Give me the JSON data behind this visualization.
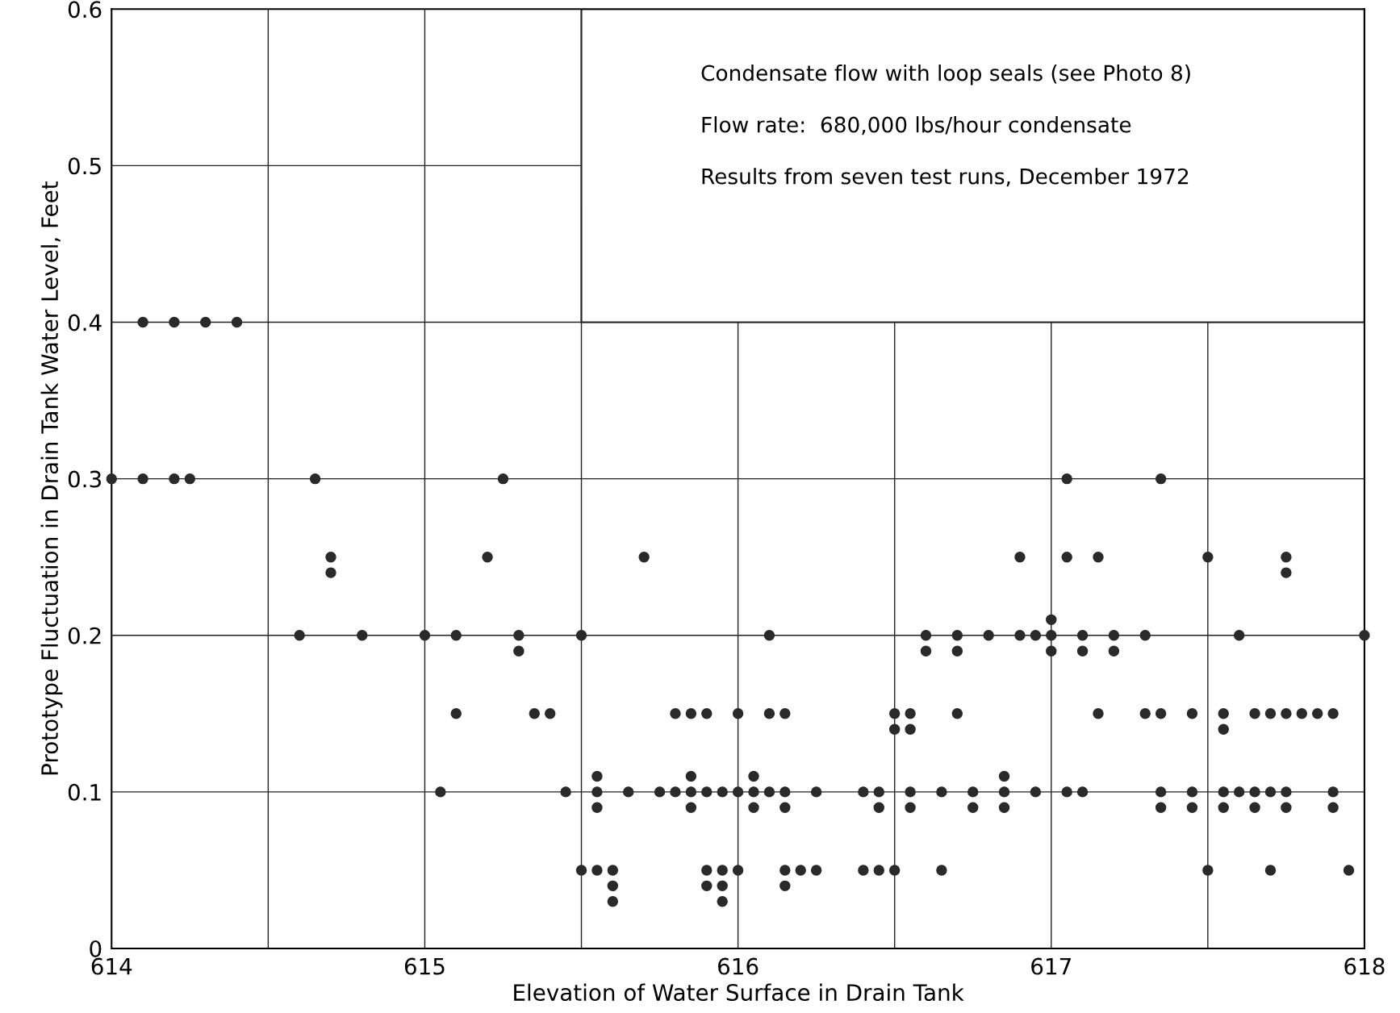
{
  "chart_data": {
    "type": "scatter",
    "xlabel": "Elevation of Water Surface in Drain Tank",
    "ylabel": "Prototype Fluctuation in Drain Tank Water Level, Feet",
    "annotations": [
      "Condensate flow with loop seals (see Photo 8)",
      "Flow rate:  680,000 lbs/hour condensate",
      "Results from seven test runs, December 1972"
    ],
    "x": [
      614.1,
      614.2,
      614.3,
      614.4,
      614.0,
      614.1,
      614.2,
      614.25,
      614.65,
      615.25,
      617.05,
      617.35,
      614.7,
      615.2,
      615.7,
      616.9,
      617.05,
      617.15,
      617.5,
      617.75,
      614.7,
      617.75,
      617.0,
      614.6,
      614.8,
      615.0,
      615.1,
      615.3,
      615.5,
      616.1,
      616.6,
      616.7,
      616.8,
      616.9,
      616.95,
      617.0,
      617.1,
      617.2,
      617.3,
      617.6,
      618.0,
      615.3,
      616.6,
      616.7,
      617.0,
      617.1,
      617.2,
      615.1,
      615.35,
      615.4,
      615.8,
      615.85,
      615.9,
      616.0,
      616.1,
      616.15,
      616.5,
      616.55,
      616.7,
      617.15,
      617.3,
      617.35,
      617.45,
      617.55,
      617.65,
      617.7,
      617.75,
      617.8,
      617.85,
      617.9,
      616.5,
      616.55,
      617.55,
      615.55,
      615.85,
      616.05,
      616.85,
      615.05,
      615.45,
      615.55,
      615.65,
      615.75,
      615.8,
      615.85,
      615.9,
      615.95,
      616.0,
      616.05,
      616.1,
      616.15,
      616.25,
      616.4,
      616.45,
      616.55,
      616.65,
      616.75,
      616.85,
      616.95,
      617.05,
      617.1,
      617.35,
      617.45,
      617.55,
      617.6,
      617.65,
      617.7,
      617.75,
      617.9,
      615.55,
      615.85,
      616.05,
      616.15,
      616.45,
      616.55,
      616.75,
      616.85,
      617.35,
      617.45,
      617.55,
      617.65,
      617.75,
      617.9,
      615.5,
      615.55,
      615.6,
      615.9,
      615.95,
      616.0,
      616.15,
      616.2,
      616.25,
      616.4,
      616.45,
      616.5,
      616.65,
      617.5,
      617.7,
      617.95,
      615.6,
      615.9,
      615.95,
      616.15,
      615.6,
      615.95
    ],
    "series": [
      {
        "color": "#2a2a2a",
        "values": [
          0.4,
          0.4,
          0.4,
          0.4,
          0.3,
          0.3,
          0.3,
          0.3,
          0.3,
          0.3,
          0.3,
          0.3,
          0.25,
          0.25,
          0.25,
          0.25,
          0.25,
          0.25,
          0.25,
          0.25,
          0.24,
          0.24,
          0.21,
          0.2,
          0.2,
          0.2,
          0.2,
          0.2,
          0.2,
          0.2,
          0.2,
          0.2,
          0.2,
          0.2,
          0.2,
          0.2,
          0.2,
          0.2,
          0.2,
          0.2,
          0.2,
          0.19,
          0.19,
          0.19,
          0.19,
          0.19,
          0.19,
          0.15,
          0.15,
          0.15,
          0.15,
          0.15,
          0.15,
          0.15,
          0.15,
          0.15,
          0.15,
          0.15,
          0.15,
          0.15,
          0.15,
          0.15,
          0.15,
          0.15,
          0.15,
          0.15,
          0.15,
          0.15,
          0.15,
          0.15,
          0.14,
          0.14,
          0.14,
          0.11,
          0.11,
          0.11,
          0.11,
          0.1,
          0.1,
          0.1,
          0.1,
          0.1,
          0.1,
          0.1,
          0.1,
          0.1,
          0.1,
          0.1,
          0.1,
          0.1,
          0.1,
          0.1,
          0.1,
          0.1,
          0.1,
          0.1,
          0.1,
          0.1,
          0.1,
          0.1,
          0.1,
          0.1,
          0.1,
          0.1,
          0.1,
          0.1,
          0.1,
          0.1,
          0.09,
          0.09,
          0.09,
          0.09,
          0.09,
          0.09,
          0.09,
          0.09,
          0.09,
          0.09,
          0.09,
          0.09,
          0.09,
          0.09,
          0.05,
          0.05,
          0.05,
          0.05,
          0.05,
          0.05,
          0.05,
          0.05,
          0.05,
          0.05,
          0.05,
          0.05,
          0.05,
          0.05,
          0.05,
          0.05,
          0.04,
          0.04,
          0.04,
          0.04,
          0.03,
          0.03
        ]
      }
    ],
    "xlim": [
      614,
      618
    ],
    "xticks": [
      614,
      {
        "value": 614.5,
        "label": null
      },
      615,
      {
        "value": 615.5,
        "label": null
      },
      616,
      {
        "value": 616.5,
        "label": null
      },
      617,
      {
        "value": 617.5,
        "label": null
      },
      618
    ],
    "ylim": [
      0,
      0.6
    ],
    "yticks": [
      0,
      0.1,
      0.2,
      0.3,
      0.4,
      0.5,
      0.6
    ],
    "grid": true,
    "marker": "circle"
  }
}
